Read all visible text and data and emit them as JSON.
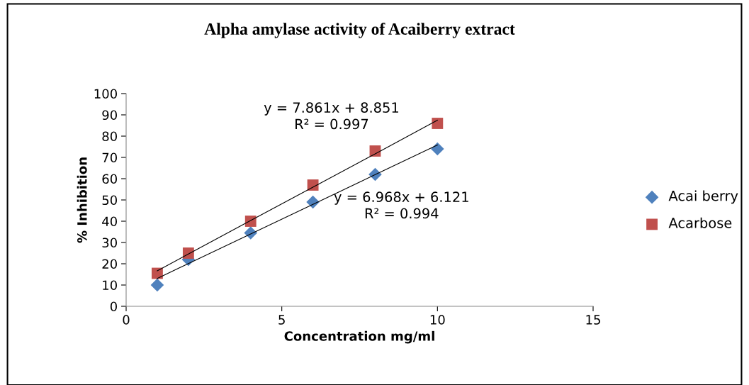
{
  "chart_data": {
    "type": "scatter",
    "title": "Alpha amylase activity of Acaiberry extract",
    "xlabel": "Concentration mg/ml",
    "ylabel": "% Inhibition",
    "x": [
      1,
      2,
      4,
      6,
      8,
      10
    ],
    "series": [
      {
        "name": "Acai berry",
        "color": "#4f81bd",
        "marker": "diamond",
        "values": [
          10,
          22,
          34.5,
          49,
          62,
          74
        ]
      },
      {
        "name": "Acarbose",
        "color": "#c0504d",
        "marker": "square",
        "values": [
          15.5,
          25,
          40,
          57,
          73,
          86
        ]
      },
      {
        "type": "line",
        "color": "#000000",
        "values": [
          13.1,
          20.1,
          34,
          47.9,
          61.9,
          75.8
        ]
      },
      {
        "type": "line",
        "color": "#000000",
        "values": [
          16.7,
          24.6,
          40.3,
          56,
          71.7,
          87.5
        ]
      }
    ],
    "annotations": [
      "y = 7.861x + 8.851\nR² = 0.997",
      "y = 6.968x + 6.121\nR² = 0.994"
    ],
    "xlim": [
      0,
      15
    ],
    "xticks": [
      0,
      5,
      10,
      15
    ],
    "ylim": [
      0,
      100
    ],
    "yticks": [
      0,
      10,
      20,
      30,
      40,
      50,
      60,
      70,
      80,
      90,
      100
    ],
    "grid": false,
    "legend": "right"
  }
}
